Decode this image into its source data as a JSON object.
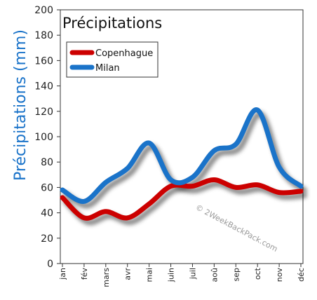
{
  "chart_data": {
    "type": "line",
    "title": "Précipitations",
    "ylabel": "Précipitations (mm)",
    "xlabel": "",
    "categories": [
      "jan",
      "fév",
      "mars",
      "avr",
      "mai",
      "juin",
      "juil",
      "aoû",
      "sep",
      "oct",
      "nov",
      "déc"
    ],
    "ylim": [
      0,
      200
    ],
    "yticks": [
      0,
      20,
      40,
      60,
      80,
      100,
      120,
      140,
      160,
      180,
      200
    ],
    "grid": false,
    "legend_position": "top-left",
    "series": [
      {
        "name": "Copenhague",
        "color": "#cc0000",
        "values": [
          52,
          36,
          41,
          36,
          47,
          61,
          61,
          66,
          60,
          62,
          56,
          57
        ]
      },
      {
        "name": "Milan",
        "color": "#1a73c9",
        "values": [
          58,
          49,
          64,
          75,
          95,
          66,
          68,
          89,
          94,
          121,
          76,
          61
        ]
      }
    ],
    "watermark": "© 2WeekBackPack.com"
  }
}
